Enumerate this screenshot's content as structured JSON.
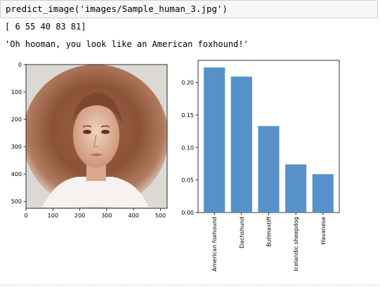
{
  "cell": {
    "code": "predict_image('images/Sample_human_3.jpg')"
  },
  "output": {
    "predictions_line": "[ 6 55 40 83 81]",
    "message_line": "'Oh hooman, you look like an American foxhound!'"
  },
  "image_plot": {
    "colors": {
      "frame": "#000000"
    },
    "xticks": [
      "0",
      "100",
      "200",
      "300",
      "400",
      "500"
    ],
    "yticks": [
      "0",
      "100",
      "200",
      "300",
      "400",
      "500"
    ]
  },
  "chart_data": {
    "type": "bar",
    "categories": [
      "American foxhound",
      "Dachshund",
      "Bullmastiff",
      "Icelandic sheepdog",
      "Havanese"
    ],
    "values": [
      0.223,
      0.209,
      0.133,
      0.074,
      0.059
    ],
    "yticks": [
      "0.00",
      "0.05",
      "0.10",
      "0.15",
      "0.20"
    ],
    "ylim": [
      0,
      0.234
    ],
    "grid": false,
    "bar_color": "#5791c9"
  }
}
